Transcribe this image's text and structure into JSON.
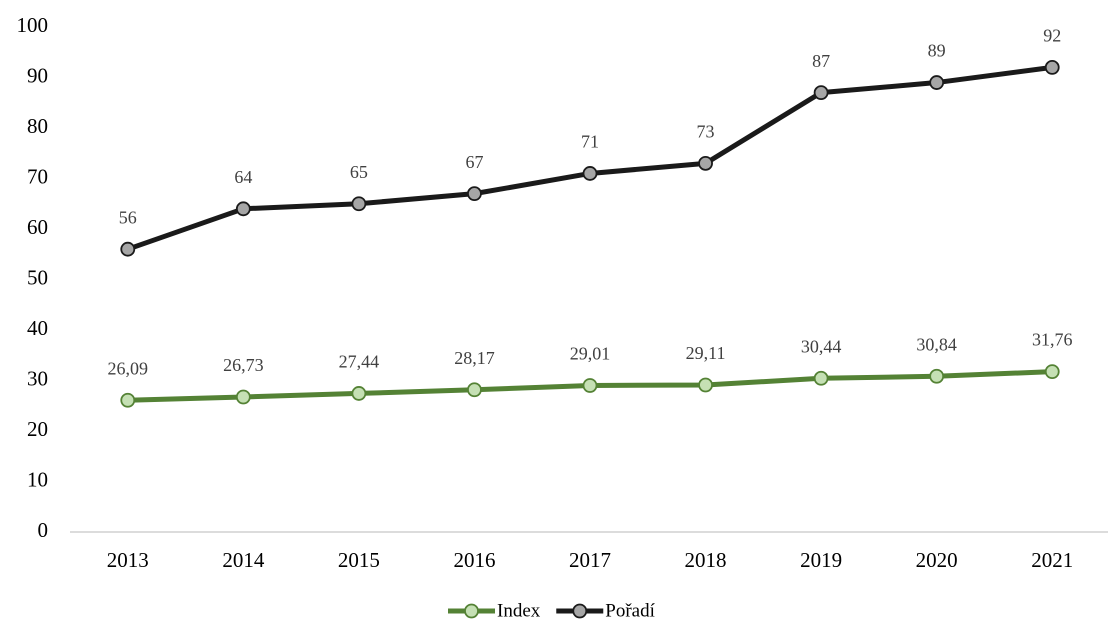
{
  "chart_data": {
    "type": "line",
    "categories": [
      "2013",
      "2014",
      "2015",
      "2016",
      "2017",
      "2018",
      "2019",
      "2020",
      "2021"
    ],
    "series": [
      {
        "name": "Index",
        "color": "#548235",
        "marker_color": "#c5e0b4",
        "values": [
          26.09,
          26.73,
          27.44,
          28.17,
          29.01,
          29.11,
          30.44,
          30.84,
          31.76
        ],
        "value_labels": [
          "26,09",
          "26,73",
          "27,44",
          "28,17",
          "29,01",
          "29,11",
          "30,44",
          "30,84",
          "31,76"
        ]
      },
      {
        "name": "Pořadí",
        "color": "#1a1a1a",
        "marker_color": "#a6a6a6",
        "values": [
          56,
          64,
          65,
          67,
          71,
          73,
          87,
          89,
          92
        ]
      }
    ],
    "ylim": [
      0,
      100
    ],
    "yticks": [
      0,
      10,
      20,
      30,
      40,
      50,
      60,
      70,
      80,
      90,
      100
    ],
    "grid": false,
    "legend": "bottom"
  }
}
